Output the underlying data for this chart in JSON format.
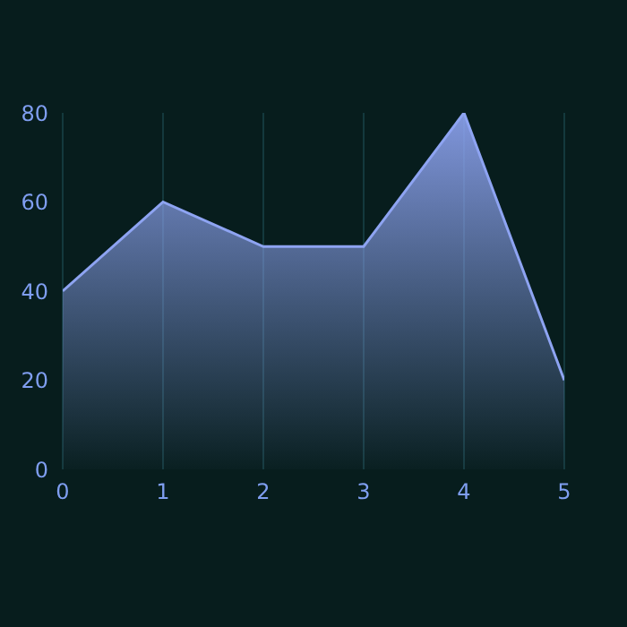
{
  "chart_data": {
    "type": "area",
    "x": [
      0,
      1,
      2,
      3,
      4,
      5
    ],
    "series": [
      {
        "color": "#8ea4f2",
        "values": [
          40,
          60,
          50,
          50,
          80,
          20
        ]
      }
    ],
    "xlim": [
      0,
      5
    ],
    "xticks": [
      0,
      1,
      2,
      3,
      4,
      5
    ],
    "ylim": [
      0,
      80
    ],
    "yticks": [
      0,
      20,
      40,
      60,
      80
    ],
    "grid": "x"
  }
}
